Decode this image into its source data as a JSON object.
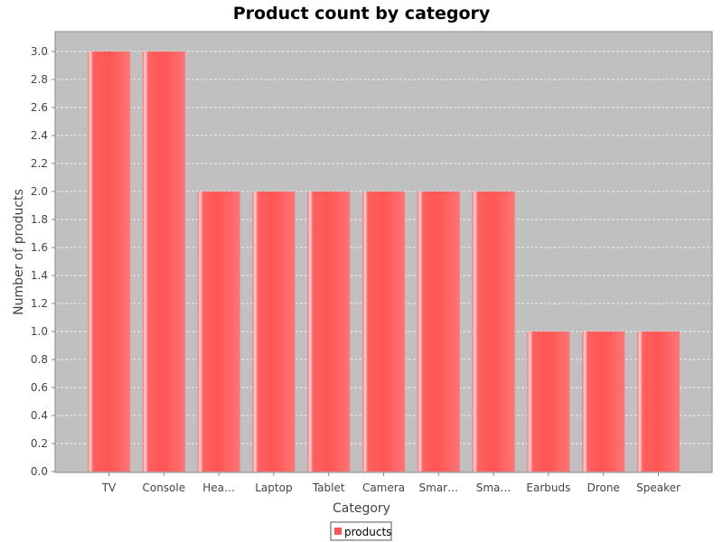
{
  "chart_data": {
    "type": "bar",
    "title": "Product count by category",
    "xlabel": "Category",
    "ylabel": "Number of products",
    "categories": [
      "TV",
      "Console",
      "Hea…",
      "Laptop",
      "Tablet",
      "Camera",
      "Smar…",
      "Sma…",
      "Earbuds",
      "Drone",
      "Speaker"
    ],
    "series": [
      {
        "name": "products",
        "values": [
          3,
          3,
          2,
          2,
          2,
          2,
          2,
          2,
          1,
          1,
          1
        ]
      }
    ],
    "ylim": [
      0,
      3.15
    ],
    "yticks": [
      "0.0",
      "0.2",
      "0.4",
      "0.6",
      "0.8",
      "1.0",
      "1.2",
      "1.4",
      "1.6",
      "1.8",
      "2.0",
      "2.2",
      "2.4",
      "2.6",
      "2.8",
      "3.0"
    ],
    "grid": true,
    "legend": "bottom-center",
    "colors": {
      "bar": "#ff5555",
      "plot_background": "#c0c0c0",
      "gridline": "#ffffff"
    }
  }
}
